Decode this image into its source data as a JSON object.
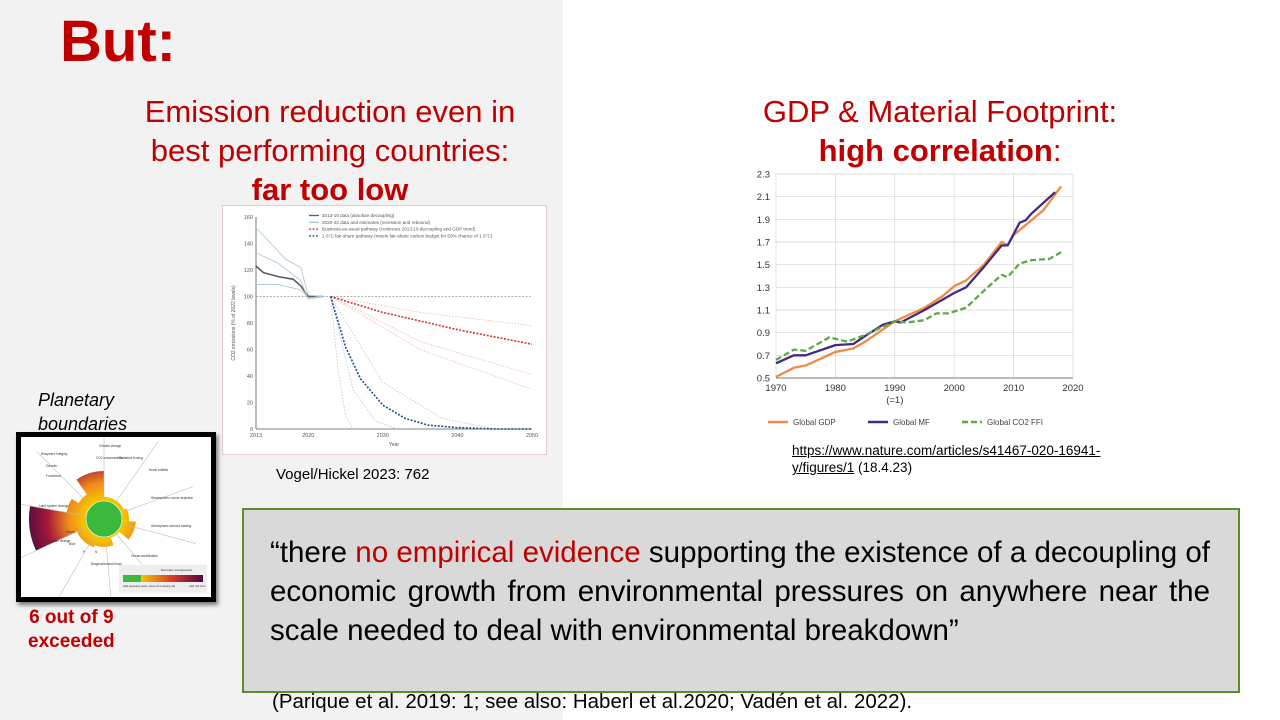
{
  "title": "But:",
  "left_heading": {
    "line1": "Emission reduction even in",
    "line2": "best performing countries:",
    "emph": "far too low"
  },
  "right_heading": {
    "line1": "GDP & Material Footprint:",
    "emph": "high correlation",
    "suffix": ":"
  },
  "left_chart_caption": "Vogel/Hickel 2023: 762",
  "right_chart_link": {
    "url_line1": "https://www.nature.com/articles/s41467-020-16941-",
    "url_line2": "y/figures/1",
    "date": " (18.4.23)"
  },
  "planetary": {
    "title_line1": "Planetary",
    "title_line2": "boundaries",
    "count_line1": "6 out of 9",
    "count_line2": "exceeded",
    "labels": [
      "Biosphere integrity",
      "Genetic",
      "Functional",
      "Climate change",
      "CO2 concentration",
      "Radiative forcing",
      "Novel entities",
      "Stratospheric ozone depletion",
      "Atmospheric aerosol loading",
      "Ocean acidification",
      "Biogeochemical flows",
      "Freshwater change",
      "Blue",
      "Green",
      "Land system change",
      "P",
      "N"
    ],
    "legend": {
      "title": "Boundary transgressed",
      "safe": "Safe operating space",
      "risk": "Zone of increasing risk",
      "high": "High risk zone"
    },
    "colors": {
      "safe": "#3cb93c",
      "mid": "#f5c400",
      "high": "#4a0b3f"
    }
  },
  "quote": {
    "open": "“there ",
    "red": "no empirical evidence",
    "rest": " supporting the existence of a decoupling of economic growth from environmental pressures on anywhere near the scale needed to deal with environmental breakdown”"
  },
  "citation": "(Parique et al. 2019: 1; see also: Haberl et al.2020; Vadén et al. 2022).",
  "chart_data": [
    {
      "type": "line",
      "title": "",
      "xlabel": "Year",
      "ylabel": "CO2 emissions (% of 2022 levels)",
      "xlim": [
        2013,
        2050
      ],
      "ylim": [
        0,
        160
      ],
      "xticks": [
        2013,
        2020,
        2030,
        2040,
        2050
      ],
      "yticks": [
        0,
        20,
        40,
        60,
        80,
        100,
        120,
        140,
        160
      ],
      "legend": [
        "2013-19 data (absolute decoupling)",
        "2020-22 data and estimates (recession and rebound)",
        "Business-as-usual pathway (continues 2013-19 decoupling and GDP trend)",
        "1·5°C fair-share pathway (meets fair-share carbon budget for 50% chance of 1·5°C)"
      ],
      "legend_position": "top",
      "series": [
        {
          "name": "2013-19 data (absolute decoupling)",
          "style": "solid",
          "color": "#555e66",
          "x": [
            2013,
            2014,
            2016,
            2018,
            2019,
            2020,
            2022
          ],
          "y": [
            123,
            118,
            115,
            113,
            108,
            100,
            100
          ]
        },
        {
          "name": "2020-22 data and estimates (recession and rebound)",
          "style": "thin",
          "color": "#a9c4d4",
          "x": [
            2013,
            2015,
            2017,
            2019,
            2020,
            2022
          ],
          "y": [
            152,
            140,
            128,
            122,
            101,
            100
          ]
        },
        {
          "name": "2020-22 data and estimates (recession and rebound)",
          "style": "thin",
          "color": "#a9c4d4",
          "x": [
            2013,
            2016,
            2019,
            2020,
            2022
          ],
          "y": [
            133,
            125,
            112,
            98,
            100
          ]
        },
        {
          "name": "2020-22 data and estimates (recession and rebound)",
          "style": "thin",
          "color": "#a9c4d4",
          "x": [
            2013,
            2016,
            2019,
            2020,
            2022
          ],
          "y": [
            109,
            109,
            105,
            99,
            100
          ]
        },
        {
          "name": "Business-as-usual pathway",
          "style": "dashed",
          "color": "#d7322b",
          "x": [
            2023,
            2030,
            2040,
            2050
          ],
          "y": [
            100,
            88,
            75,
            64
          ]
        },
        {
          "name": "1·5°C fair-share pathway",
          "style": "dashed",
          "color": "#1f4f8c",
          "x": [
            2023,
            2025,
            2027,
            2030,
            2033,
            2036,
            2040,
            2045,
            2050
          ],
          "y": [
            100,
            62,
            38,
            18,
            8,
            3,
            1,
            0,
            0
          ]
        },
        {
          "name": "BAU range",
          "style": "faint",
          "color": "#f0b9a8",
          "x": [
            2023,
            2035,
            2050
          ],
          "y": [
            100,
            88,
            78
          ]
        },
        {
          "name": "BAU range",
          "style": "faint",
          "color": "#f0b9a8",
          "x": [
            2023,
            2035,
            2050
          ],
          "y": [
            100,
            66,
            41
          ]
        },
        {
          "name": "BAU range",
          "style": "faint",
          "color": "#f0b9a8",
          "x": [
            2023,
            2035,
            2050
          ],
          "y": [
            100,
            60,
            30
          ]
        },
        {
          "name": "1.5 range",
          "style": "faint",
          "color": "#b9c2dc",
          "x": [
            2023,
            2024,
            2025,
            2026
          ],
          "y": [
            100,
            45,
            10,
            0
          ]
        },
        {
          "name": "1.5 range",
          "style": "faint",
          "color": "#b9c2dc",
          "x": [
            2023,
            2026,
            2029,
            2032
          ],
          "y": [
            100,
            30,
            6,
            0
          ]
        },
        {
          "name": "1.5 range",
          "style": "faint",
          "color": "#b9c2dc",
          "x": [
            2023,
            2030,
            2038,
            2045
          ],
          "y": [
            100,
            35,
            8,
            0
          ]
        }
      ]
    },
    {
      "type": "line",
      "title": "",
      "xlabel": "",
      "ylabel": "",
      "xlim": [
        1970,
        2020
      ],
      "ylim": [
        0.5,
        2.3
      ],
      "xticks": [
        "1970",
        "1980",
        "1990",
        "2000",
        "2010",
        "2020"
      ],
      "xtick_sub": "(=1)",
      "yticks": [
        "0.5",
        "0.7",
        "0.9",
        "1.1",
        "1.3",
        "1.5",
        "1.7",
        "1.9",
        "2.1",
        "2.3"
      ],
      "legend_position": "bottom",
      "grid": true,
      "series": [
        {
          "name": "Global GDP",
          "color": "#ef8a47",
          "style": "solid",
          "x": [
            1970,
            1973,
            1975,
            1980,
            1983,
            1985,
            1990,
            1995,
            1998,
            2000,
            2002,
            2005,
            2008,
            2009,
            2010,
            2015,
            2018
          ],
          "y": [
            0.51,
            0.59,
            0.61,
            0.73,
            0.76,
            0.82,
            1.0,
            1.12,
            1.22,
            1.31,
            1.36,
            1.5,
            1.7,
            1.67,
            1.76,
            1.98,
            2.19
          ]
        },
        {
          "name": "Global MF",
          "color": "#3f2a86",
          "style": "solid",
          "x": [
            1970,
            1973,
            1975,
            1980,
            1983,
            1985,
            1988,
            1990,
            1991,
            1995,
            2000,
            2002,
            2005,
            2008,
            2009,
            2011,
            2012,
            2013,
            2017
          ],
          "y": [
            0.63,
            0.7,
            0.7,
            0.79,
            0.8,
            0.87,
            0.97,
            1.0,
            0.99,
            1.1,
            1.25,
            1.3,
            1.48,
            1.67,
            1.67,
            1.87,
            1.89,
            1.95,
            2.14
          ]
        },
        {
          "name": "Global CO2 FFI",
          "color": "#5ea846",
          "style": "dashed",
          "x": [
            1970,
            1973,
            1975,
            1979,
            1982,
            1985,
            1990,
            1992,
            1995,
            1997,
            1999,
            2002,
            2005,
            2008,
            2009,
            2011,
            2013,
            2016,
            2018
          ],
          "y": [
            0.66,
            0.75,
            0.74,
            0.86,
            0.82,
            0.88,
            1.0,
            0.99,
            1.01,
            1.07,
            1.07,
            1.12,
            1.27,
            1.41,
            1.39,
            1.51,
            1.54,
            1.55,
            1.61
          ]
        }
      ]
    }
  ]
}
